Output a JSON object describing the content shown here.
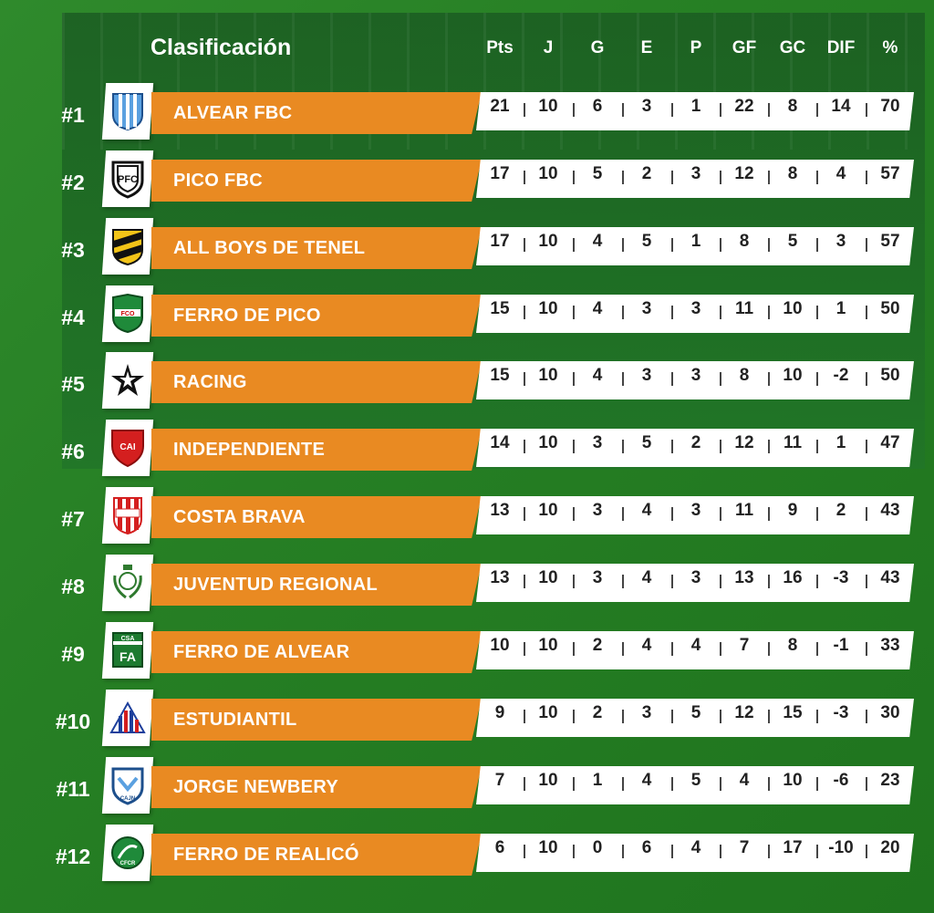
{
  "title": "Clasificación",
  "columns": [
    "Pts",
    "J",
    "G",
    "E",
    "P",
    "GF",
    "GC",
    "DIF",
    "%"
  ],
  "colors": {
    "name_bar": "#e98a22",
    "background": "#267f24",
    "stats_bar": "#ffffff"
  },
  "teams": [
    {
      "rank": "#1",
      "name": "ALVEAR FBC",
      "logo_icon": "alvear-fbc-crest-icon",
      "stats": [
        "21",
        "10",
        "6",
        "3",
        "1",
        "22",
        "8",
        "14",
        "70"
      ]
    },
    {
      "rank": "#2",
      "name": "PICO FBC",
      "logo_icon": "pico-fbc-crest-icon",
      "stats": [
        "17",
        "10",
        "5",
        "2",
        "3",
        "12",
        "8",
        "4",
        "57"
      ]
    },
    {
      "rank": "#3",
      "name": "ALL BOYS DE TENEL",
      "logo_icon": "all-boys-crest-icon",
      "stats": [
        "17",
        "10",
        "4",
        "5",
        "1",
        "8",
        "5",
        "3",
        "57"
      ]
    },
    {
      "rank": "#4",
      "name": "FERRO DE PICO",
      "logo_icon": "ferro-de-pico-crest-icon",
      "stats": [
        "15",
        "10",
        "4",
        "3",
        "3",
        "11",
        "10",
        "1",
        "50"
      ]
    },
    {
      "rank": "#5",
      "name": "RACING",
      "logo_icon": "racing-star-icon",
      "stats": [
        "15",
        "10",
        "4",
        "3",
        "3",
        "8",
        "10",
        "-2",
        "50"
      ]
    },
    {
      "rank": "#6",
      "name": "INDEPENDIENTE",
      "logo_icon": "independiente-crest-icon",
      "stats": [
        "14",
        "10",
        "3",
        "5",
        "2",
        "12",
        "11",
        "1",
        "47"
      ]
    },
    {
      "rank": "#7",
      "name": "COSTA BRAVA",
      "logo_icon": "costa-brava-crest-icon",
      "stats": [
        "13",
        "10",
        "3",
        "4",
        "3",
        "11",
        "9",
        "2",
        "43"
      ]
    },
    {
      "rank": "#8",
      "name": "JUVENTUD REGIONAL",
      "logo_icon": "juventud-regional-crest-icon",
      "stats": [
        "13",
        "10",
        "3",
        "4",
        "3",
        "13",
        "16",
        "-3",
        "43"
      ]
    },
    {
      "rank": "#9",
      "name": "FERRO DE ALVEAR",
      "logo_icon": "ferro-de-alvear-crest-icon",
      "stats": [
        "10",
        "10",
        "2",
        "4",
        "4",
        "7",
        "8",
        "-1",
        "33"
      ]
    },
    {
      "rank": "#10",
      "name": "ESTUDIANTIL",
      "logo_icon": "estudiantil-crest-icon",
      "stats": [
        "9",
        "10",
        "2",
        "3",
        "5",
        "12",
        "15",
        "-3",
        "30"
      ]
    },
    {
      "rank": "#11",
      "name": "JORGE NEWBERY",
      "logo_icon": "jorge-newbery-crest-icon",
      "stats": [
        "7",
        "10",
        "1",
        "4",
        "5",
        "4",
        "10",
        "-6",
        "23"
      ]
    },
    {
      "rank": "#12",
      "name": "FERRO DE REALICÓ",
      "logo_icon": "ferro-de-realico-crest-icon",
      "stats": [
        "6",
        "10",
        "0",
        "6",
        "4",
        "7",
        "17",
        "-10",
        "20"
      ]
    }
  ]
}
